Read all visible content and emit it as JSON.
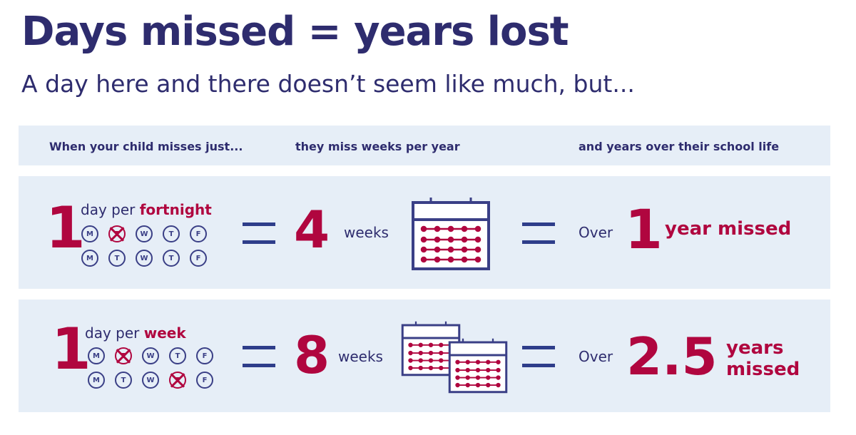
{
  "title": "Days missed = years lost",
  "subtitle": "A day here and there doesn’t seem like much, but...",
  "header": {
    "col1": "When your child misses just...",
    "col2": "they miss weeks per year",
    "col3": "and years over their school life"
  },
  "rows": [
    {
      "count": "1",
      "prefix": "day per ",
      "period": "fortnight",
      "days": [
        {
          "l": "M",
          "m": false
        },
        {
          "l": "T",
          "m": true
        },
        {
          "l": "W",
          "m": false
        },
        {
          "l": "T",
          "m": false
        },
        {
          "l": "F",
          "m": false
        },
        {
          "l": "M",
          "m": false
        },
        {
          "l": "T",
          "m": false
        },
        {
          "l": "W",
          "m": false
        },
        {
          "l": "T",
          "m": false
        },
        {
          "l": "F",
          "m": false
        }
      ],
      "weeks": "4",
      "weeks_label": "weeks",
      "over": "Over",
      "years": "1",
      "years_label": "year missed"
    },
    {
      "count": "1",
      "prefix": "day per ",
      "period": "week",
      "days": [
        {
          "l": "M",
          "m": false
        },
        {
          "l": "T",
          "m": true
        },
        {
          "l": "W",
          "m": false
        },
        {
          "l": "T",
          "m": false
        },
        {
          "l": "F",
          "m": false
        },
        {
          "l": "M",
          "m": false
        },
        {
          "l": "T",
          "m": false
        },
        {
          "l": "W",
          "m": false
        },
        {
          "l": "T",
          "m": true
        },
        {
          "l": "F",
          "m": false
        }
      ],
      "weeks": "8",
      "weeks_label": "weeks",
      "over": "Over",
      "years": "2.5",
      "years_label": "years missed"
    }
  ],
  "colors": {
    "navy": "#2e2c6e",
    "crimson": "#b0063f",
    "panel": "#e6eef7"
  }
}
